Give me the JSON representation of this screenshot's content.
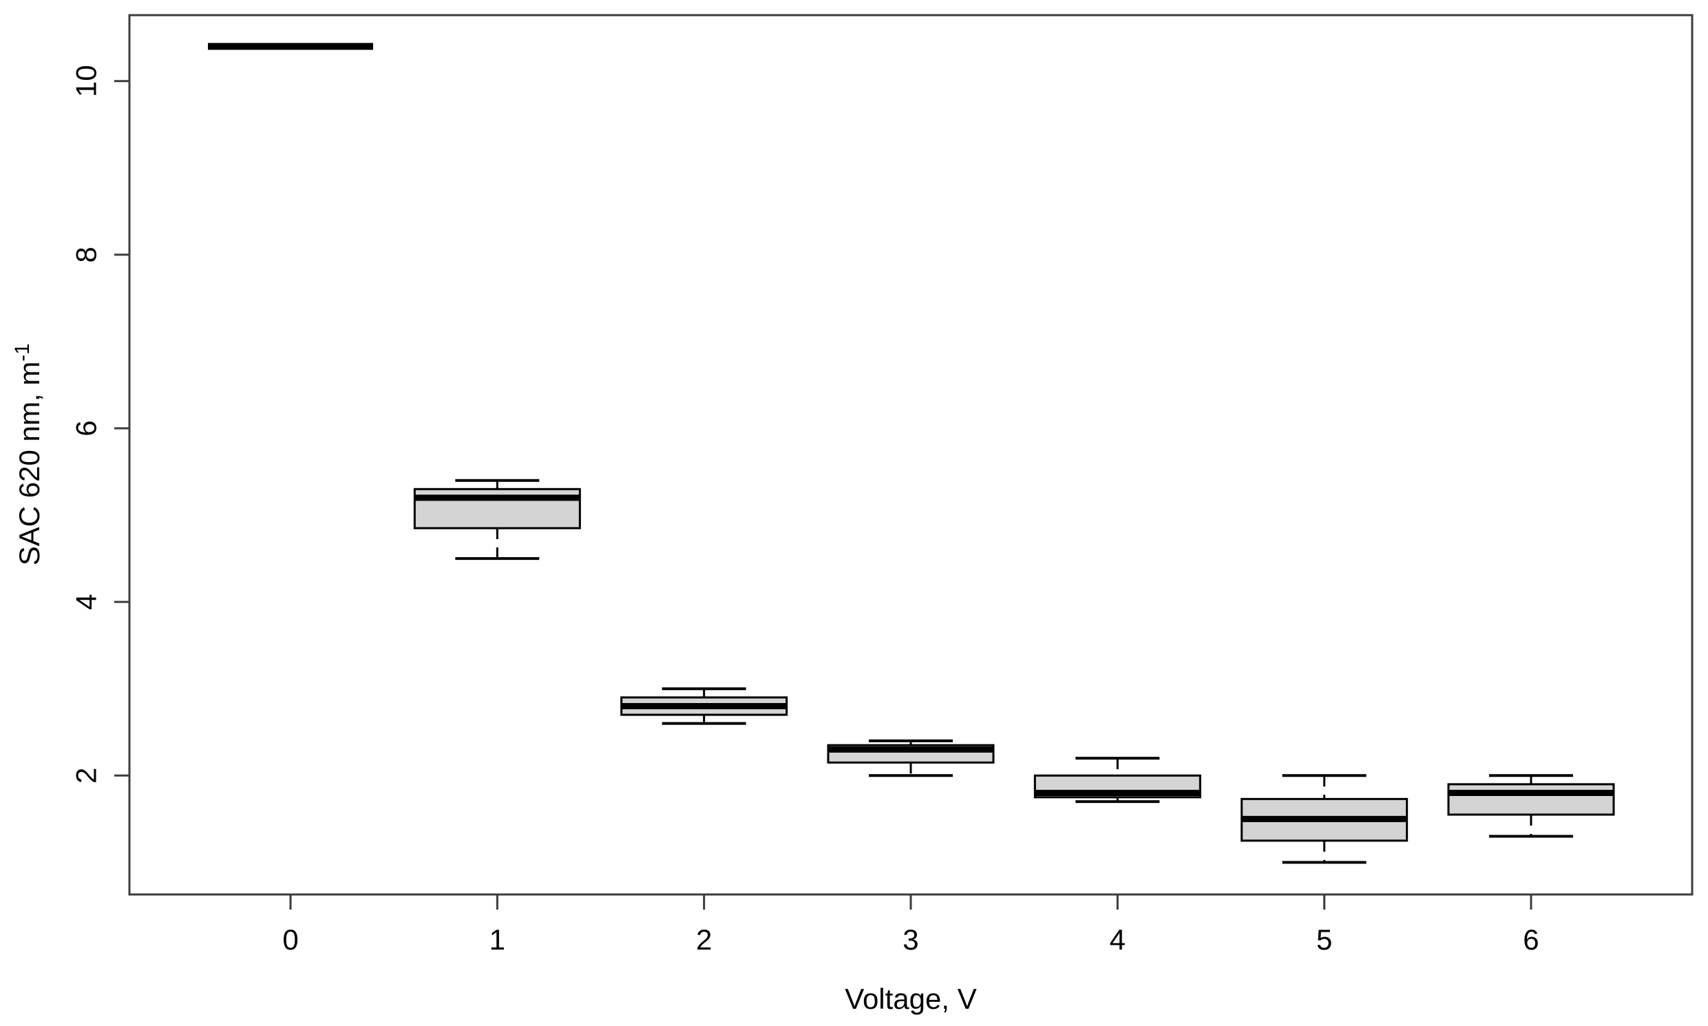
{
  "chart_data": {
    "type": "boxplot",
    "title": "",
    "xlabel": "Voltage, V",
    "ylabel_base": "SAC 620 nm, m",
    "ylabel_exponent": "-1",
    "categories": [
      "0",
      "1",
      "2",
      "3",
      "4",
      "5",
      "6"
    ],
    "y_ticks": [
      "2",
      "4",
      "6",
      "8",
      "10"
    ],
    "ylim": [
      0.63,
      10.76
    ],
    "grid": false,
    "legend_position": "none",
    "box_fill_color": "#d4d4d4",
    "box_line_color": "#000000",
    "axis_color": "#3c3c3c",
    "boxes": [
      {
        "category": "0",
        "min": 10.4,
        "q1": 10.4,
        "median": 10.4,
        "q3": 10.4,
        "max": 10.4
      },
      {
        "category": "1",
        "min": 4.5,
        "q1": 4.85,
        "median": 5.2,
        "q3": 5.3,
        "max": 5.4
      },
      {
        "category": "2",
        "min": 2.6,
        "q1": 2.7,
        "median": 2.8,
        "q3": 2.9,
        "max": 3.0
      },
      {
        "category": "3",
        "min": 2.0,
        "q1": 2.15,
        "median": 2.3,
        "q3": 2.35,
        "max": 2.4
      },
      {
        "category": "4",
        "min": 1.7,
        "q1": 1.75,
        "median": 1.8,
        "q3": 2.0,
        "max": 2.2
      },
      {
        "category": "5",
        "min": 1.0,
        "q1": 1.25,
        "median": 1.5,
        "q3": 1.73,
        "max": 2.0
      },
      {
        "category": "6",
        "min": 1.3,
        "q1": 1.55,
        "median": 1.8,
        "q3": 1.9,
        "max": 2.0
      }
    ]
  }
}
